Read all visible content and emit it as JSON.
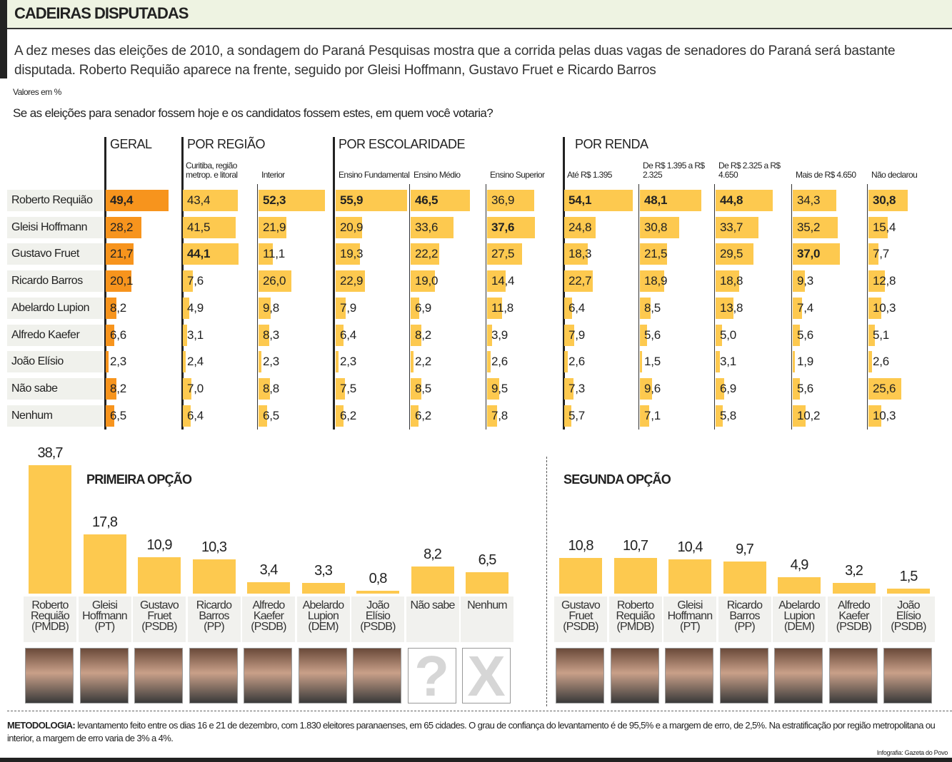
{
  "header": {
    "title": "CADEIRAS DISPUTADAS"
  },
  "intro": "A dez meses das eleições de 2010, a sondagem do Paraná Pesquisas mostra que a corrida pelas duas vagas de senadores do Paraná será bastante disputada. Roberto Requião aparece na frente, seguido por Gleisi Hoffmann, Gustavo Fruet e Ricardo Barros",
  "units": "Valores em %",
  "question": "Se as eleições para senador fossem hoje e os candidatos fossem estes, em quem você votaria?",
  "colors": {
    "geral": "#f7941d",
    "segment": "#fdc94f",
    "label_bg": "#f0f1ec",
    "header_bg": "#eef3e2"
  },
  "chart_data": [
    {
      "type": "table",
      "groups": [
        "GERAL",
        "POR REGIÃO",
        "POR ESCOLARIDADE",
        "POR RENDA"
      ],
      "columns": [
        "",
        "Curitiba, região metrop. e litoral",
        "Interior",
        "Ensino Fundamental",
        "Ensino Médio",
        "Ensino Superior",
        "Até R$ 1.395",
        "De R$ 1.395 a R$ 2.325",
        "De R$ 2.325 a R$ 4.650",
        "Mais de R$ 4.650",
        "Não declarou"
      ],
      "rows": [
        "Roberto Requião",
        "Gleisi Hoffmann",
        "Gustavo Fruet",
        "Ricardo Barros",
        "Abelardo Lupion",
        "Alfredo Kaefer",
        "João Elísio",
        "Não sabe",
        "Nenhum"
      ],
      "values": [
        [
          "49,4",
          "43,4",
          "52,3",
          "55,9",
          "46,5",
          "36,9",
          "54,1",
          "48,1",
          "44,8",
          "34,3",
          "30,8"
        ],
        [
          "28,2",
          "41,5",
          "21,9",
          "20,9",
          "33,6",
          "37,6",
          "24,8",
          "30,8",
          "33,7",
          "35,2",
          "15,4"
        ],
        [
          "21,7",
          "44,1",
          "11,1",
          "19,3",
          "22,2",
          "27,5",
          "18,3",
          "21,5",
          "29,5",
          "37,0",
          "7,7"
        ],
        [
          "20,1",
          "7,6",
          "26,0",
          "22,9",
          "19,0",
          "14,4",
          "22,7",
          "18,9",
          "18,8",
          "9,3",
          "12,8"
        ],
        [
          "8,2",
          "4,9",
          "9,8",
          "7,9",
          "6,9",
          "11,8",
          "6,4",
          "8,5",
          "13,8",
          "7,4",
          "10,3"
        ],
        [
          "6,6",
          "3,1",
          "8,3",
          "6,4",
          "8,2",
          "3,9",
          "7,9",
          "5,6",
          "5,0",
          "5,6",
          "5,1"
        ],
        [
          "2,3",
          "2,4",
          "2,3",
          "2,3",
          "2,2",
          "2,6",
          "2,6",
          "1,5",
          "3,1",
          "1,9",
          "2,6"
        ],
        [
          "8,2",
          "7,0",
          "8,8",
          "7,5",
          "8,5",
          "9,5",
          "7,3",
          "9,6",
          "6,9",
          "5,6",
          "25,6"
        ],
        [
          "6,5",
          "6,4",
          "6,5",
          "6,2",
          "6,2",
          "7,8",
          "5,7",
          "7,1",
          "5,8",
          "10,2",
          "10,3"
        ]
      ]
    },
    {
      "type": "bar",
      "title": "PRIMEIRA OPÇÃO",
      "categories": [
        [
          "Roberto",
          "Requião",
          "(PMDB)"
        ],
        [
          "Gleisi",
          "Hoffmann",
          "(PT)"
        ],
        [
          "Gustavo",
          "Fruet",
          "(PSDB)"
        ],
        [
          "Ricardo",
          "Barros",
          "(PP)"
        ],
        [
          "Alfredo",
          "Kaefer",
          "(PSDB)"
        ],
        [
          "Abelardo",
          "Lupion",
          "(DEM)"
        ],
        [
          "João",
          "Elísio",
          "(PSDB)"
        ],
        [
          "Não sabe"
        ],
        [
          "Nenhum"
        ]
      ],
      "values": [
        "38,7",
        "17,8",
        "10,9",
        "10,3",
        "3,4",
        "3,3",
        "0,8",
        "8,2",
        "6,5"
      ],
      "photos": [
        "photo",
        "photo",
        "photo",
        "photo",
        "photo",
        "photo",
        "photo",
        "question-mark",
        "x-mark"
      ]
    },
    {
      "type": "bar",
      "title": "SEGUNDA OPÇÃO",
      "categories": [
        [
          "Gustavo",
          "Fruet",
          "(PSDB)"
        ],
        [
          "Roberto",
          "Requião",
          "(PMDB)"
        ],
        [
          "Gleisi",
          "Hoffmann",
          "(PT)"
        ],
        [
          "Ricardo",
          "Barros",
          "(PP)"
        ],
        [
          "Abelardo",
          "Lupion",
          "(DEM)"
        ],
        [
          "Alfredo",
          "Kaefer",
          "(PSDB)"
        ],
        [
          "João",
          "Elísio",
          "(PSDB)"
        ]
      ],
      "values": [
        "10,8",
        "10,7",
        "10,4",
        "9,7",
        "4,9",
        "3,2",
        "1,5"
      ],
      "photos": [
        "photo",
        "photo",
        "photo",
        "photo",
        "photo",
        "photo",
        "photo"
      ]
    }
  ],
  "methodology": {
    "label": "METODOLOGIA:",
    "text": " levantamento feito entre os dias 16 e 21 de dezembro, com 1.830 eleitores paranaenses, em 65 cidades. O grau de confiança do levantamento é de 95,5% e a margem de erro, de 2,5%. Na estratificação por região metropolitana ou interior, a margem de erro varia de 3% a 4%."
  },
  "credit": "Infografia: Gazeta do Povo"
}
